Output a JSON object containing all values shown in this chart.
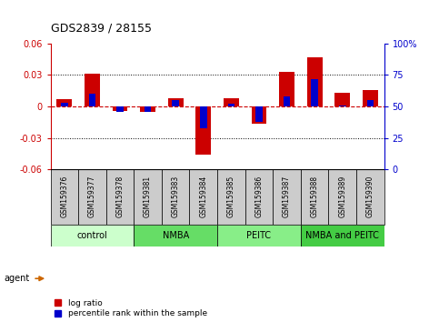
{
  "title": "GDS2839 / 28155",
  "samples": [
    "GSM159376",
    "GSM159377",
    "GSM159378",
    "GSM159381",
    "GSM159383",
    "GSM159384",
    "GSM159385",
    "GSM159386",
    "GSM159387",
    "GSM159388",
    "GSM159389",
    "GSM159390"
  ],
  "log_ratio": [
    0.007,
    0.031,
    -0.004,
    -0.005,
    0.008,
    -0.046,
    0.008,
    -0.016,
    0.033,
    0.047,
    0.013,
    0.016
  ],
  "percentile_rank": [
    53,
    60,
    46,
    46,
    55,
    33,
    52,
    38,
    58,
    72,
    51,
    55
  ],
  "ylim_left": [
    -0.06,
    0.06
  ],
  "ylim_right": [
    0,
    100
  ],
  "yticks_left": [
    -0.06,
    -0.03,
    0.0,
    0.03,
    0.06
  ],
  "yticks_right": [
    0,
    25,
    50,
    75,
    100
  ],
  "groups": [
    {
      "label": "control",
      "start": 0,
      "end": 3,
      "color": "#ccffcc"
    },
    {
      "label": "NMBA",
      "start": 3,
      "end": 6,
      "color": "#66dd66"
    },
    {
      "label": "PEITC",
      "start": 6,
      "end": 9,
      "color": "#88ee88"
    },
    {
      "label": "NMBA and PEITC",
      "start": 9,
      "end": 12,
      "color": "#44cc44"
    }
  ],
  "bar_color_red": "#cc0000",
  "bar_color_blue": "#0000cc",
  "zero_line_color": "#cc0000",
  "dotted_line_color": "#000000",
  "bg_color": "#ffffff",
  "plot_bg_color": "#ffffff",
  "agent_arrow_color": "#cc6600",
  "title_color": "#000000",
  "left_axis_color": "#cc0000",
  "right_axis_color": "#0000cc",
  "label_bg_color": "#cccccc",
  "label_border_color": "#000000"
}
